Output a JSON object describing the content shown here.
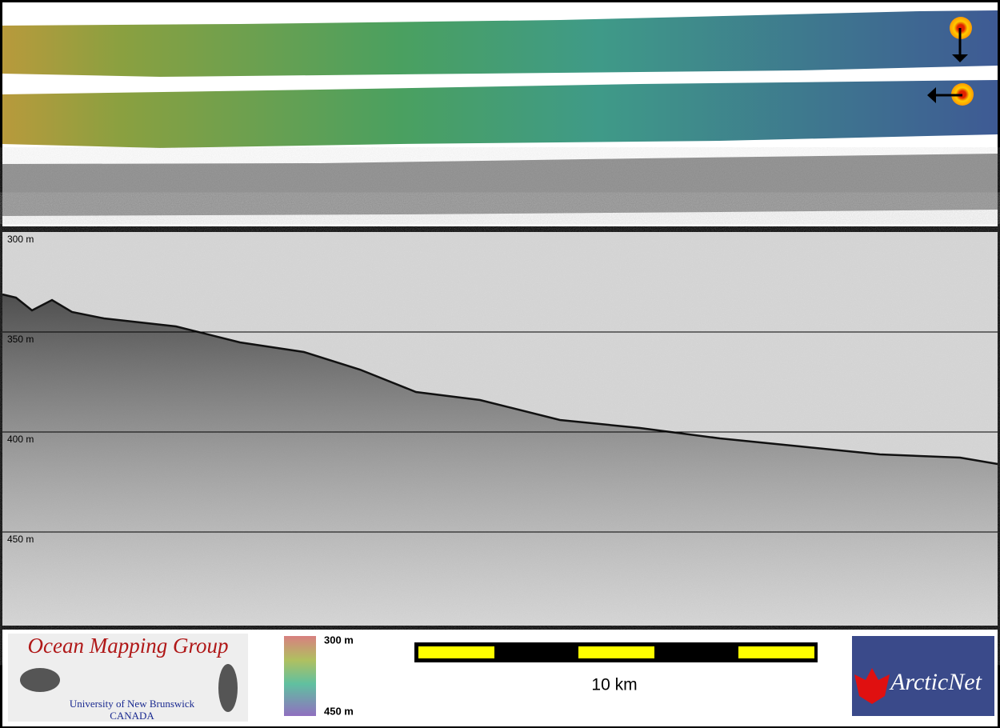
{
  "profile": {
    "depth_labels": [
      "300 m",
      "350 m",
      "400 m",
      "450 m"
    ]
  },
  "footer": {
    "logo_title": "Ocean Mapping Group",
    "logo_subtitle": "University of New Brunswick",
    "logo_country": "CANADA",
    "colorbar_top": "300 m",
    "colorbar_bottom": "450 m",
    "scale_label": "10 km",
    "partner": "ArcticNet"
  }
}
